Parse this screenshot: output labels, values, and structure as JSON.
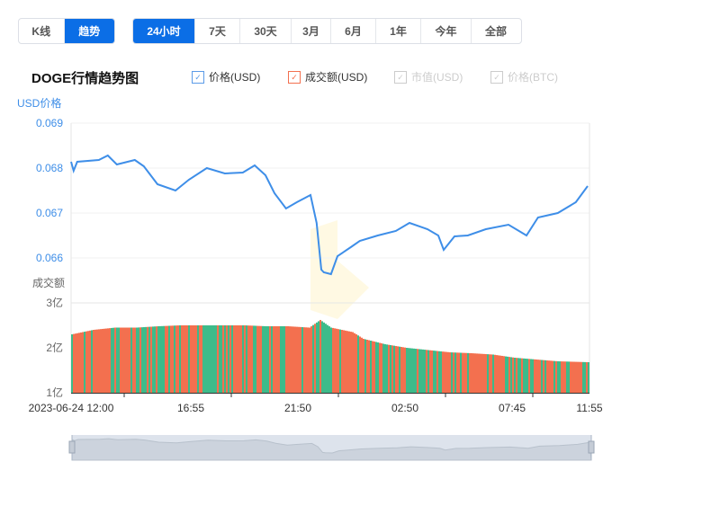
{
  "view_toggle": [
    {
      "label": "K线",
      "active": false
    },
    {
      "label": "趋势",
      "active": true
    }
  ],
  "ranges": [
    {
      "label": "24小时",
      "active": true
    },
    {
      "label": "7天"
    },
    {
      "label": "30天"
    },
    {
      "label": "3月"
    },
    {
      "label": "6月"
    },
    {
      "label": "1年"
    },
    {
      "label": "今年"
    },
    {
      "label": "全部"
    }
  ],
  "title": "DOGE行情趋势图",
  "legend": [
    {
      "label": "价格(USD)",
      "color": "#5b9be8",
      "checked": true,
      "enabled": true
    },
    {
      "label": "成交额(USD)",
      "color": "#f3704f",
      "checked": true,
      "enabled": true
    },
    {
      "label": "市值(USD)",
      "color": "#cccccc",
      "checked": true,
      "enabled": false
    },
    {
      "label": "价格(BTC)",
      "color": "#cccccc",
      "checked": true,
      "enabled": false
    }
  ],
  "chart_data": {
    "type": "line",
    "price_axis_label": "USD价格",
    "volume_axis_label": "成交额",
    "price_ticks": [
      "0.069",
      "0.068",
      "0.067",
      "0.066"
    ],
    "price_ylim": [
      0.0655,
      0.069
    ],
    "volume_ticks": [
      "3亿",
      "2亿",
      "1亿"
    ],
    "volume_ylim": [
      1,
      3
    ],
    "x_ticks": [
      "2023-06-24 12:00",
      "16:55",
      "21:50",
      "02:50",
      "07:45",
      "11:55"
    ],
    "colors": {
      "price": "#3e8ee8",
      "up": "#f3704f",
      "down": "#3dbb8a",
      "axis": "#3e8ee8"
    },
    "price_series": [
      [
        "12:00",
        0.06814
      ],
      [
        "12:07",
        0.06794
      ],
      [
        "12:17",
        0.06814
      ],
      [
        "13:17",
        0.06818
      ],
      [
        "13:42",
        0.06828
      ],
      [
        "14:07",
        0.06808
      ],
      [
        "14:57",
        0.06818
      ],
      [
        "15:22",
        0.06804
      ],
      [
        "16:00",
        0.06764
      ],
      [
        "16:50",
        0.0675
      ],
      [
        "17:27",
        0.06774
      ],
      [
        "18:17",
        0.068
      ],
      [
        "19:07",
        0.06788
      ],
      [
        "19:57",
        0.0679
      ],
      [
        "20:30",
        0.06806
      ],
      [
        "21:00",
        0.06784
      ],
      [
        "21:25",
        0.06744
      ],
      [
        "21:57",
        0.0671
      ],
      [
        "22:27",
        0.06724
      ],
      [
        "23:05",
        0.0674
      ],
      [
        "23:22",
        0.06678
      ],
      [
        "23:35",
        0.06574
      ],
      [
        "23:42",
        0.06568
      ],
      [
        "00:02",
        0.06564
      ],
      [
        "00:20",
        0.06604
      ],
      [
        "00:57",
        0.06624
      ],
      [
        "01:22",
        0.06638
      ],
      [
        "02:12",
        0.0665
      ],
      [
        "03:02",
        0.0666
      ],
      [
        "03:40",
        0.06678
      ],
      [
        "04:30",
        0.06664
      ],
      [
        "05:00",
        0.0665
      ],
      [
        "05:15",
        0.06618
      ],
      [
        "05:45",
        0.06648
      ],
      [
        "06:22",
        0.0665
      ],
      [
        "07:12",
        0.06664
      ],
      [
        "08:15",
        0.06674
      ],
      [
        "09:05",
        0.0665
      ],
      [
        "09:37",
        0.0669
      ],
      [
        "10:32",
        0.067
      ],
      [
        "11:22",
        0.06724
      ],
      [
        "11:55",
        0.0676
      ]
    ],
    "volume_series_yi": [
      [
        "12:00",
        2.3
      ],
      [
        "13:00",
        2.4
      ],
      [
        "14:00",
        2.45
      ],
      [
        "15:00",
        2.45
      ],
      [
        "16:00",
        2.48
      ],
      [
        "17:00",
        2.5
      ],
      [
        "18:00",
        2.5
      ],
      [
        "19:00",
        2.5
      ],
      [
        "20:00",
        2.5
      ],
      [
        "21:00",
        2.48
      ],
      [
        "22:00",
        2.48
      ],
      [
        "23:00",
        2.45
      ],
      [
        "23:30",
        2.62
      ],
      [
        "00:00",
        2.45
      ],
      [
        "01:00",
        2.35
      ],
      [
        "01:30",
        2.2
      ],
      [
        "02:30",
        2.08
      ],
      [
        "03:30",
        2.0
      ],
      [
        "04:30",
        1.95
      ],
      [
        "05:30",
        1.9
      ],
      [
        "06:30",
        1.88
      ],
      [
        "07:30",
        1.85
      ],
      [
        "08:30",
        1.78
      ],
      [
        "09:30",
        1.74
      ],
      [
        "10:30",
        1.7
      ],
      [
        "11:55",
        1.68
      ]
    ]
  }
}
